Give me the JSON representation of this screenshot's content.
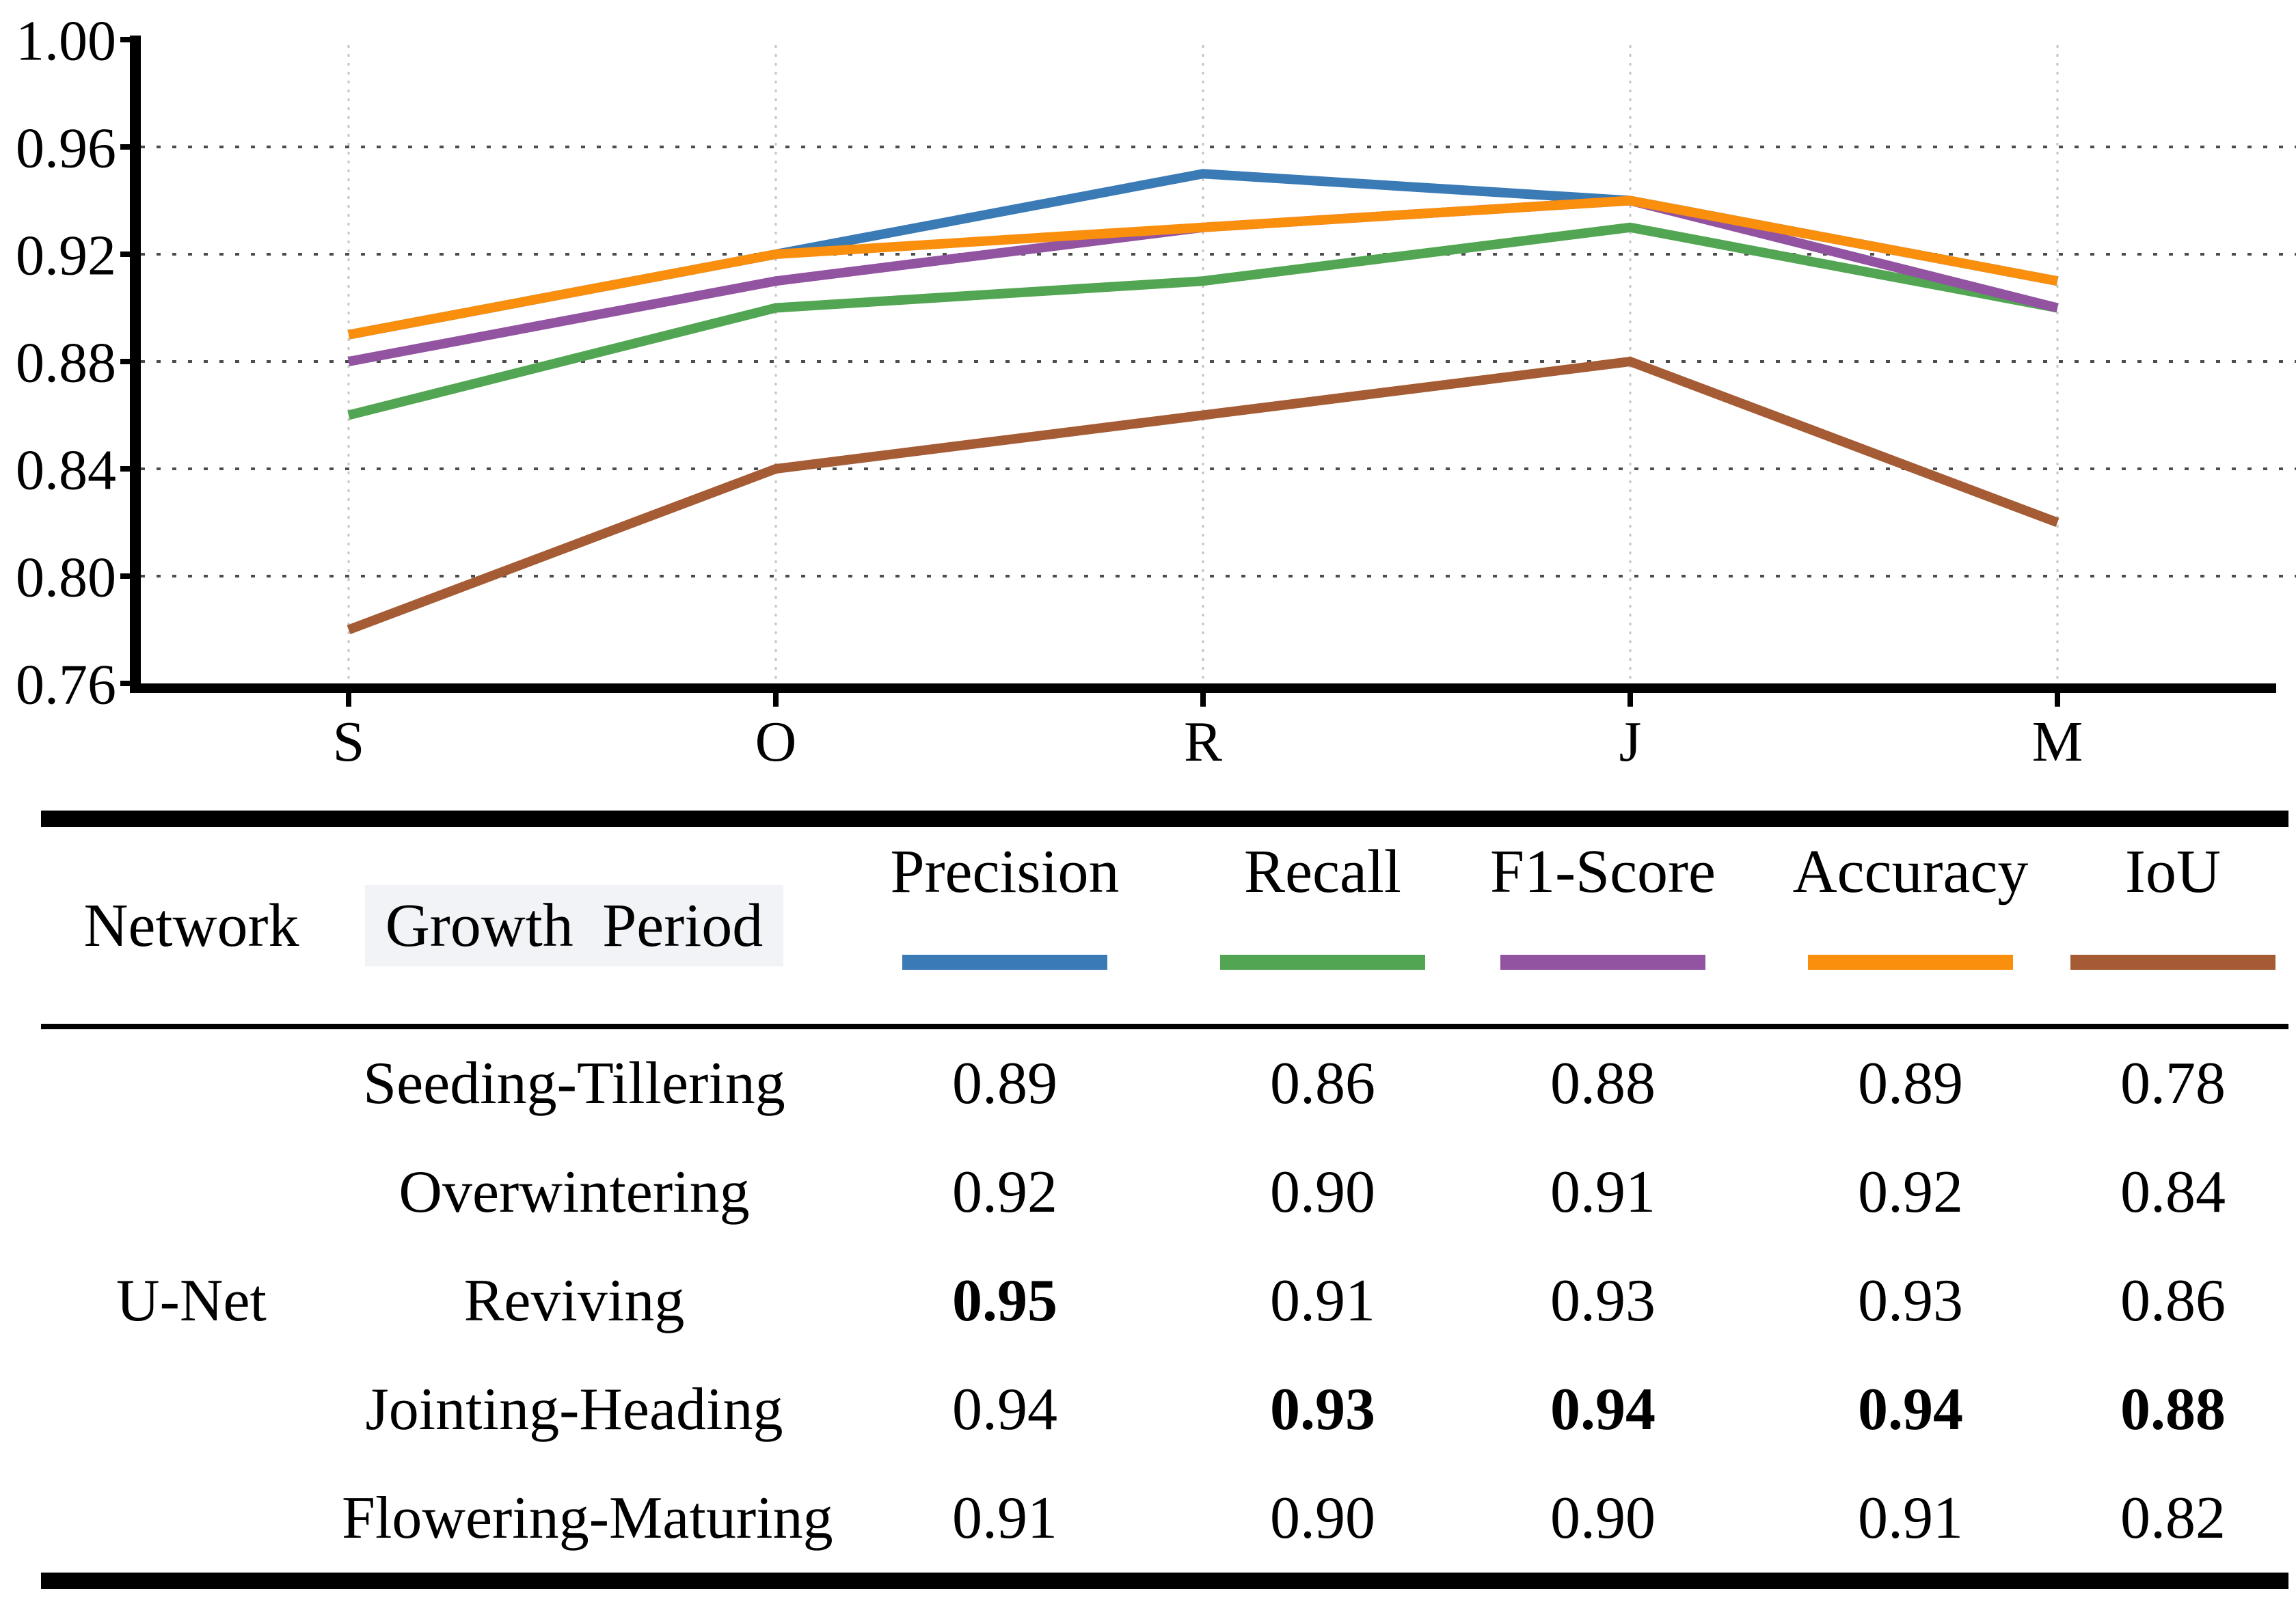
{
  "chart_data": {
    "type": "line",
    "categories": [
      "S",
      "O",
      "R",
      "J",
      "M"
    ],
    "ytick_labels": [
      "1.00",
      "0.96",
      "0.92",
      "0.88",
      "0.84",
      "0.80",
      "0.76"
    ],
    "ylim": [
      0.76,
      1.0
    ],
    "grid": {
      "horizontal": "dotted",
      "vertical": "dotted"
    },
    "legend_position": "table-header-swatches",
    "series": [
      {
        "name": "Precision",
        "color": "#3a7ab5",
        "values": [
          0.89,
          0.92,
          0.95,
          0.94,
          0.91
        ]
      },
      {
        "name": "Recall",
        "color": "#52a552",
        "values": [
          0.86,
          0.9,
          0.91,
          0.93,
          0.9
        ]
      },
      {
        "name": "F1-Score",
        "color": "#9253a1",
        "values": [
          0.88,
          0.91,
          0.93,
          0.94,
          0.9
        ]
      },
      {
        "name": "Accuracy",
        "color": "#fa8e0d",
        "values": [
          0.89,
          0.92,
          0.93,
          0.94,
          0.91
        ]
      },
      {
        "name": "IoU",
        "color": "#a55c35",
        "values": [
          0.78,
          0.84,
          0.86,
          0.88,
          0.82
        ]
      }
    ]
  },
  "table": {
    "headers": {
      "network": "Network",
      "growth_period": "Growth Period",
      "metrics": [
        "Precision",
        "Recall",
        "F1-Score",
        "Accuracy",
        "IoU"
      ]
    },
    "network_value": "U-Net",
    "rows": [
      {
        "period": "Seeding-Tillering",
        "values": [
          "0.89",
          "0.86",
          "0.88",
          "0.89",
          "0.78"
        ],
        "bold": [
          false,
          false,
          false,
          false,
          false
        ]
      },
      {
        "period": "Overwintering",
        "values": [
          "0.92",
          "0.90",
          "0.91",
          "0.92",
          "0.84"
        ],
        "bold": [
          false,
          false,
          false,
          false,
          false
        ]
      },
      {
        "period": "Reviving",
        "values": [
          "0.95",
          "0.91",
          "0.93",
          "0.93",
          "0.86"
        ],
        "bold": [
          true,
          false,
          false,
          false,
          false
        ]
      },
      {
        "period": "Jointing-Heading",
        "values": [
          "0.94",
          "0.93",
          "0.94",
          "0.94",
          "0.88"
        ],
        "bold": [
          false,
          true,
          true,
          true,
          true
        ]
      },
      {
        "period": "Flowering-Maturing",
        "values": [
          "0.91",
          "0.90",
          "0.90",
          "0.91",
          "0.82"
        ],
        "bold": [
          false,
          false,
          false,
          false,
          false
        ]
      }
    ]
  }
}
